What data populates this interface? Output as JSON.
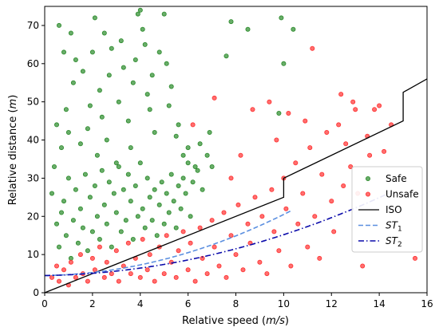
{
  "chart_data": {
    "type": "scatter",
    "xlabel": "Relative speed (m/s)",
    "ylabel": "Relative distance (m)",
    "xlim": [
      0,
      16
    ],
    "ylim": [
      0,
      75
    ],
    "xticks": [
      0,
      2,
      4,
      6,
      8,
      10,
      12,
      14,
      16
    ],
    "yticks": [
      0,
      10,
      20,
      30,
      40,
      50,
      60,
      70
    ],
    "legend_position": "right",
    "colors": {
      "safe": "#2a8a2a",
      "unsafe": "#ff3030",
      "iso": "#000000",
      "st1": "#5b8fe0",
      "st2": "#0a0aaa"
    },
    "legend": [
      {
        "key": "safe",
        "label": "Safe",
        "kind": "marker"
      },
      {
        "key": "unsafe",
        "label": "Unsafe",
        "kind": "marker"
      },
      {
        "key": "iso",
        "label": "ISO",
        "kind": "solid"
      },
      {
        "key": "st1",
        "label": "ST",
        "sub": "1",
        "kind": "dashed"
      },
      {
        "key": "st2",
        "label": "ST",
        "sub": "2",
        "kind": "dashdot"
      }
    ],
    "series": [
      {
        "key": "safe",
        "name": "Safe",
        "points": [
          [
            0.4,
            33
          ],
          [
            0.5,
            44
          ],
          [
            0.6,
            70
          ],
          [
            0.7,
            38
          ],
          [
            0.8,
            63
          ],
          [
            0.9,
            48
          ],
          [
            1.0,
            42
          ],
          [
            1.1,
            68
          ],
          [
            1.2,
            55
          ],
          [
            1.3,
            61
          ],
          [
            1.5,
            39
          ],
          [
            1.6,
            58
          ],
          [
            1.8,
            43
          ],
          [
            1.9,
            49
          ],
          [
            2.0,
            63
          ],
          [
            2.1,
            72
          ],
          [
            2.2,
            36
          ],
          [
            2.3,
            53
          ],
          [
            2.4,
            46
          ],
          [
            2.5,
            68
          ],
          [
            2.6,
            40
          ],
          [
            2.7,
            57
          ],
          [
            2.8,
            64
          ],
          [
            3.0,
            34
          ],
          [
            3.1,
            50
          ],
          [
            3.2,
            66
          ],
          [
            3.3,
            59
          ],
          [
            3.5,
            45
          ],
          [
            3.6,
            38
          ],
          [
            3.7,
            55
          ],
          [
            3.8,
            61
          ],
          [
            3.9,
            73
          ],
          [
            4.0,
            74
          ],
          [
            4.1,
            69
          ],
          [
            4.2,
            65
          ],
          [
            4.3,
            52
          ],
          [
            4.4,
            48
          ],
          [
            4.5,
            57
          ],
          [
            4.6,
            42
          ],
          [
            4.8,
            63
          ],
          [
            5.0,
            73
          ],
          [
            5.1,
            60
          ],
          [
            5.2,
            49
          ],
          [
            5.3,
            54
          ],
          [
            5.5,
            41
          ],
          [
            5.6,
            44
          ],
          [
            5.8,
            36
          ],
          [
            6.0,
            38
          ],
          [
            6.3,
            33
          ],
          [
            6.5,
            39
          ],
          [
            6.9,
            42
          ],
          [
            7.6,
            62
          ],
          [
            7.8,
            71
          ],
          [
            8.5,
            69
          ],
          [
            9.8,
            47
          ],
          [
            9.9,
            72
          ],
          [
            10.0,
            60
          ],
          [
            10.4,
            69
          ],
          [
            0.3,
            26
          ],
          [
            0.5,
            18
          ],
          [
            0.6,
            12
          ],
          [
            0.7,
            21
          ],
          [
            0.8,
            24
          ],
          [
            0.9,
            15
          ],
          [
            1.0,
            30
          ],
          [
            1.1,
            9
          ],
          [
            1.2,
            19
          ],
          [
            1.3,
            27
          ],
          [
            1.4,
            13
          ],
          [
            1.5,
            22
          ],
          [
            1.6,
            17
          ],
          [
            1.7,
            31
          ],
          [
            1.8,
            11
          ],
          [
            1.9,
            25
          ],
          [
            2.0,
            16
          ],
          [
            2.1,
            28
          ],
          [
            2.2,
            20
          ],
          [
            2.3,
            14
          ],
          [
            2.4,
            32
          ],
          [
            2.5,
            23
          ],
          [
            2.6,
            18
          ],
          [
            2.7,
            29
          ],
          [
            2.8,
            12
          ],
          [
            2.9,
            26
          ],
          [
            3.0,
            21
          ],
          [
            3.1,
            33
          ],
          [
            3.2,
            16
          ],
          [
            3.3,
            27
          ],
          [
            3.4,
            19
          ],
          [
            3.5,
            31
          ],
          [
            3.6,
            24
          ],
          [
            3.7,
            14
          ],
          [
            3.8,
            28
          ],
          [
            3.9,
            20
          ],
          [
            4.0,
            34
          ],
          [
            4.1,
            22
          ],
          [
            4.2,
            17
          ],
          [
            4.3,
            30
          ],
          [
            4.4,
            25
          ],
          [
            4.5,
            19
          ],
          [
            4.6,
            27
          ],
          [
            4.7,
            15
          ],
          [
            4.8,
            23
          ],
          [
            4.9,
            29
          ],
          [
            5.0,
            18
          ],
          [
            5.1,
            26
          ],
          [
            5.2,
            21
          ],
          [
            5.3,
            31
          ],
          [
            5.4,
            24
          ],
          [
            5.5,
            17
          ],
          [
            5.6,
            28
          ],
          [
            5.7,
            22
          ],
          [
            5.8,
            30
          ],
          [
            5.9,
            26
          ],
          [
            6.0,
            34
          ],
          [
            6.1,
            20
          ],
          [
            6.2,
            29
          ],
          [
            6.4,
            32
          ],
          [
            6.6,
            27
          ],
          [
            6.8,
            36
          ],
          [
            7.0,
            33
          ]
        ]
      },
      {
        "key": "unsafe",
        "name": "Unsafe",
        "points": [
          [
            0.3,
            4
          ],
          [
            0.5,
            7
          ],
          [
            0.6,
            3
          ],
          [
            0.8,
            6
          ],
          [
            1.0,
            2
          ],
          [
            1.1,
            8
          ],
          [
            1.3,
            4
          ],
          [
            1.5,
            10
          ],
          [
            1.6,
            5
          ],
          [
            1.8,
            3
          ],
          [
            2.0,
            9
          ],
          [
            2.1,
            6
          ],
          [
            2.3,
            12
          ],
          [
            2.5,
            4
          ],
          [
            2.6,
            8
          ],
          [
            2.8,
            5
          ],
          [
            3.0,
            11
          ],
          [
            3.1,
            3
          ],
          [
            3.3,
            7
          ],
          [
            3.5,
            13
          ],
          [
            3.6,
            5
          ],
          [
            3.8,
            9
          ],
          [
            4.0,
            4
          ],
          [
            4.1,
            14
          ],
          [
            4.3,
            6
          ],
          [
            4.4,
            10
          ],
          [
            4.6,
            3
          ],
          [
            4.8,
            12
          ],
          [
            5.0,
            5
          ],
          [
            5.1,
            15
          ],
          [
            5.3,
            8
          ],
          [
            5.5,
            4
          ],
          [
            5.6,
            11
          ],
          [
            5.8,
            16
          ],
          [
            6.0,
            6
          ],
          [
            6.1,
            13
          ],
          [
            6.3,
            3
          ],
          [
            6.5,
            17
          ],
          [
            6.6,
            9
          ],
          [
            6.8,
            5
          ],
          [
            7.0,
            19
          ],
          [
            7.1,
            12
          ],
          [
            7.3,
            7
          ],
          [
            7.5,
            21
          ],
          [
            7.6,
            4
          ],
          [
            7.8,
            15
          ],
          [
            8.0,
            10
          ],
          [
            8.1,
            23
          ],
          [
            8.3,
            6
          ],
          [
            8.5,
            18
          ],
          [
            8.6,
            13
          ],
          [
            8.8,
            25
          ],
          [
            9.0,
            8
          ],
          [
            9.1,
            20
          ],
          [
            9.3,
            5
          ],
          [
            9.5,
            27
          ],
          [
            9.6,
            16
          ],
          [
            9.8,
            11
          ],
          [
            10.0,
            30
          ],
          [
            10.1,
            22
          ],
          [
            10.3,
            7
          ],
          [
            10.5,
            34
          ],
          [
            10.6,
            18
          ],
          [
            10.8,
            26
          ],
          [
            11.0,
            12
          ],
          [
            11.1,
            38
          ],
          [
            11.3,
            20
          ],
          [
            11.5,
            9
          ],
          [
            11.6,
            31
          ],
          [
            11.8,
            42
          ],
          [
            12.0,
            24
          ],
          [
            12.1,
            16
          ],
          [
            12.3,
            44
          ],
          [
            12.5,
            28
          ],
          [
            12.6,
            39
          ],
          [
            12.8,
            33
          ],
          [
            13.0,
            48
          ],
          [
            13.1,
            26
          ],
          [
            13.3,
            7
          ],
          [
            13.5,
            41
          ],
          [
            13.6,
            36
          ],
          [
            14.0,
            49
          ],
          [
            14.2,
            37
          ],
          [
            14.5,
            44
          ],
          [
            15.5,
            9
          ],
          [
            6.2,
            44
          ],
          [
            7.1,
            51
          ],
          [
            8.7,
            48
          ],
          [
            9.4,
            50
          ],
          [
            11.2,
            64
          ],
          [
            10.9,
            45
          ],
          [
            12.4,
            52
          ],
          [
            12.9,
            50
          ],
          [
            13.8,
            48
          ],
          [
            7.8,
            30
          ],
          [
            8.2,
            36
          ],
          [
            9.7,
            40
          ],
          [
            10.2,
            47
          ]
        ]
      }
    ],
    "lines": [
      {
        "key": "iso",
        "name": "ISO",
        "style": "solid",
        "points": [
          [
            0,
            0
          ],
          [
            10,
            25
          ],
          [
            10,
            30
          ],
          [
            15,
            45
          ],
          [
            15,
            52.5
          ],
          [
            16,
            56
          ]
        ]
      },
      {
        "key": "st1",
        "name": "ST1",
        "style": "dashed",
        "formula": "4.5 + 0.1*v + 0.15*v^2",
        "x_range": [
          0,
          10.3
        ]
      },
      {
        "key": "st2",
        "name": "ST2",
        "style": "dashdot",
        "formula": "4.5 + 0.1*v + 0.097*v^2",
        "x_range": [
          0,
          14.3
        ]
      }
    ]
  }
}
